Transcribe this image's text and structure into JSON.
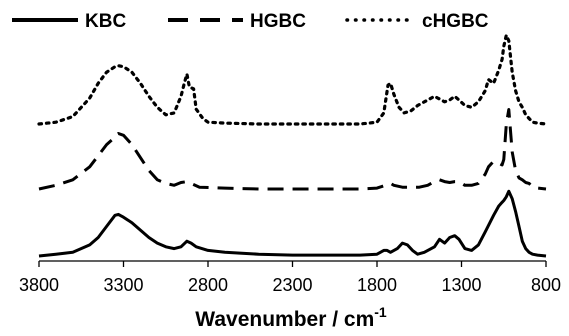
{
  "chart_data": {
    "type": "line",
    "xlabel": "Wavenumber / cm",
    "xlabel_superscript": "-1",
    "x_axis_reversed": true,
    "xlim": [
      3800,
      800
    ],
    "xticks": [
      3800,
      3300,
      2800,
      2300,
      1800,
      1300,
      800
    ],
    "y_axis_visible": false,
    "grid": false,
    "legend_position": "top",
    "series": [
      {
        "name": "KBC",
        "style": "solid",
        "color": "#000000",
        "points": [
          [
            3800,
            0.0
          ],
          [
            3700,
            0.01
          ],
          [
            3600,
            0.02
          ],
          [
            3500,
            0.06
          ],
          [
            3450,
            0.1
          ],
          [
            3400,
            0.16
          ],
          [
            3350,
            0.22
          ],
          [
            3330,
            0.225
          ],
          [
            3300,
            0.21
          ],
          [
            3250,
            0.18
          ],
          [
            3200,
            0.14
          ],
          [
            3150,
            0.1
          ],
          [
            3100,
            0.07
          ],
          [
            3050,
            0.05
          ],
          [
            3000,
            0.04
          ],
          [
            2960,
            0.05
          ],
          [
            2925,
            0.08
          ],
          [
            2900,
            0.07
          ],
          [
            2870,
            0.05
          ],
          [
            2800,
            0.03
          ],
          [
            2700,
            0.02
          ],
          [
            2500,
            0.01
          ],
          [
            2300,
            0.005
          ],
          [
            2100,
            0.005
          ],
          [
            1900,
            0.005
          ],
          [
            1800,
            0.01
          ],
          [
            1760,
            0.03
          ],
          [
            1740,
            0.03
          ],
          [
            1720,
            0.02
          ],
          [
            1680,
            0.04
          ],
          [
            1650,
            0.07
          ],
          [
            1620,
            0.06
          ],
          [
            1590,
            0.03
          ],
          [
            1560,
            0.01
          ],
          [
            1520,
            0.02
          ],
          [
            1460,
            0.05
          ],
          [
            1430,
            0.09
          ],
          [
            1400,
            0.07
          ],
          [
            1370,
            0.1
          ],
          [
            1340,
            0.11
          ],
          [
            1315,
            0.09
          ],
          [
            1280,
            0.04
          ],
          [
            1240,
            0.03
          ],
          [
            1200,
            0.06
          ],
          [
            1160,
            0.13
          ],
          [
            1110,
            0.22
          ],
          [
            1080,
            0.27
          ],
          [
            1060,
            0.29
          ],
          [
            1050,
            0.3
          ],
          [
            1035,
            0.32
          ],
          [
            1020,
            0.35
          ],
          [
            1000,
            0.31
          ],
          [
            980,
            0.24
          ],
          [
            960,
            0.16
          ],
          [
            940,
            0.08
          ],
          [
            920,
            0.04
          ],
          [
            900,
            0.02
          ],
          [
            880,
            0.01
          ],
          [
            850,
            0.005
          ],
          [
            800,
            0.0
          ]
        ]
      },
      {
        "name": "HGBC",
        "style": "dashed",
        "color": "#000000",
        "points": [
          [
            3800,
            0.0
          ],
          [
            3700,
            0.02
          ],
          [
            3600,
            0.05
          ],
          [
            3500,
            0.12
          ],
          [
            3450,
            0.18
          ],
          [
            3400,
            0.24
          ],
          [
            3350,
            0.28
          ],
          [
            3330,
            0.3
          ],
          [
            3300,
            0.29
          ],
          [
            3250,
            0.24
          ],
          [
            3200,
            0.17
          ],
          [
            3150,
            0.1
          ],
          [
            3100,
            0.05
          ],
          [
            3050,
            0.03
          ],
          [
            3000,
            0.02
          ],
          [
            2960,
            0.035
          ],
          [
            2925,
            0.04
          ],
          [
            2900,
            0.03
          ],
          [
            2850,
            0.01
          ],
          [
            2700,
            0.005
          ],
          [
            2500,
            0.0
          ],
          [
            2300,
            0.0
          ],
          [
            2100,
            0.0
          ],
          [
            1900,
            0.0
          ],
          [
            1800,
            0.005
          ],
          [
            1750,
            0.02
          ],
          [
            1720,
            0.03
          ],
          [
            1700,
            0.02
          ],
          [
            1650,
            0.01
          ],
          [
            1600,
            0.01
          ],
          [
            1550,
            0.01
          ],
          [
            1500,
            0.02
          ],
          [
            1460,
            0.04
          ],
          [
            1430,
            0.05
          ],
          [
            1400,
            0.04
          ],
          [
            1370,
            0.035
          ],
          [
            1340,
            0.04
          ],
          [
            1315,
            0.04
          ],
          [
            1280,
            0.02
          ],
          [
            1240,
            0.02
          ],
          [
            1200,
            0.03
          ],
          [
            1160,
            0.08
          ],
          [
            1140,
            0.12
          ],
          [
            1110,
            0.15
          ],
          [
            1080,
            0.14
          ],
          [
            1060,
            0.13
          ],
          [
            1050,
            0.16
          ],
          [
            1035,
            0.35
          ],
          [
            1020,
            0.43
          ],
          [
            1000,
            0.2
          ],
          [
            980,
            0.1
          ],
          [
            960,
            0.06
          ],
          [
            940,
            0.05
          ],
          [
            920,
            0.035
          ],
          [
            900,
            0.03
          ],
          [
            880,
            0.01
          ],
          [
            850,
            0.005
          ],
          [
            800,
            0.0
          ]
        ]
      },
      {
        "name": "cHGBC",
        "style": "dotted",
        "color": "#000000",
        "points": [
          [
            3800,
            0.0
          ],
          [
            3700,
            0.01
          ],
          [
            3600,
            0.04
          ],
          [
            3500,
            0.14
          ],
          [
            3450,
            0.22
          ],
          [
            3400,
            0.28
          ],
          [
            3350,
            0.31
          ],
          [
            3330,
            0.315
          ],
          [
            3300,
            0.31
          ],
          [
            3250,
            0.28
          ],
          [
            3200,
            0.22
          ],
          [
            3150,
            0.15
          ],
          [
            3100,
            0.09
          ],
          [
            3050,
            0.05
          ],
          [
            3000,
            0.06
          ],
          [
            2960,
            0.15
          ],
          [
            2940,
            0.22
          ],
          [
            2925,
            0.27
          ],
          [
            2910,
            0.2
          ],
          [
            2885,
            0.19
          ],
          [
            2870,
            0.08
          ],
          [
            2830,
            0.03
          ],
          [
            2800,
            0.01
          ],
          [
            2700,
            0.005
          ],
          [
            2500,
            0.0
          ],
          [
            2300,
            0.0
          ],
          [
            2100,
            0.0
          ],
          [
            1900,
            0.0
          ],
          [
            1800,
            0.01
          ],
          [
            1760,
            0.06
          ],
          [
            1735,
            0.21
          ],
          [
            1720,
            0.22
          ],
          [
            1700,
            0.16
          ],
          [
            1670,
            0.09
          ],
          [
            1640,
            0.06
          ],
          [
            1600,
            0.07
          ],
          [
            1560,
            0.1
          ],
          [
            1500,
            0.13
          ],
          [
            1460,
            0.15
          ],
          [
            1440,
            0.14
          ],
          [
            1400,
            0.12
          ],
          [
            1370,
            0.13
          ],
          [
            1340,
            0.15
          ],
          [
            1315,
            0.13
          ],
          [
            1280,
            0.1
          ],
          [
            1240,
            0.09
          ],
          [
            1200,
            0.12
          ],
          [
            1160,
            0.18
          ],
          [
            1140,
            0.24
          ],
          [
            1110,
            0.22
          ],
          [
            1080,
            0.29
          ],
          [
            1060,
            0.35
          ],
          [
            1050,
            0.42
          ],
          [
            1035,
            0.48
          ],
          [
            1020,
            0.45
          ],
          [
            1000,
            0.28
          ],
          [
            980,
            0.18
          ],
          [
            960,
            0.12
          ],
          [
            940,
            0.09
          ],
          [
            920,
            0.05
          ],
          [
            900,
            0.03
          ],
          [
            880,
            0.01
          ],
          [
            850,
            0.005
          ],
          [
            800,
            0.0
          ]
        ]
      }
    ]
  }
}
